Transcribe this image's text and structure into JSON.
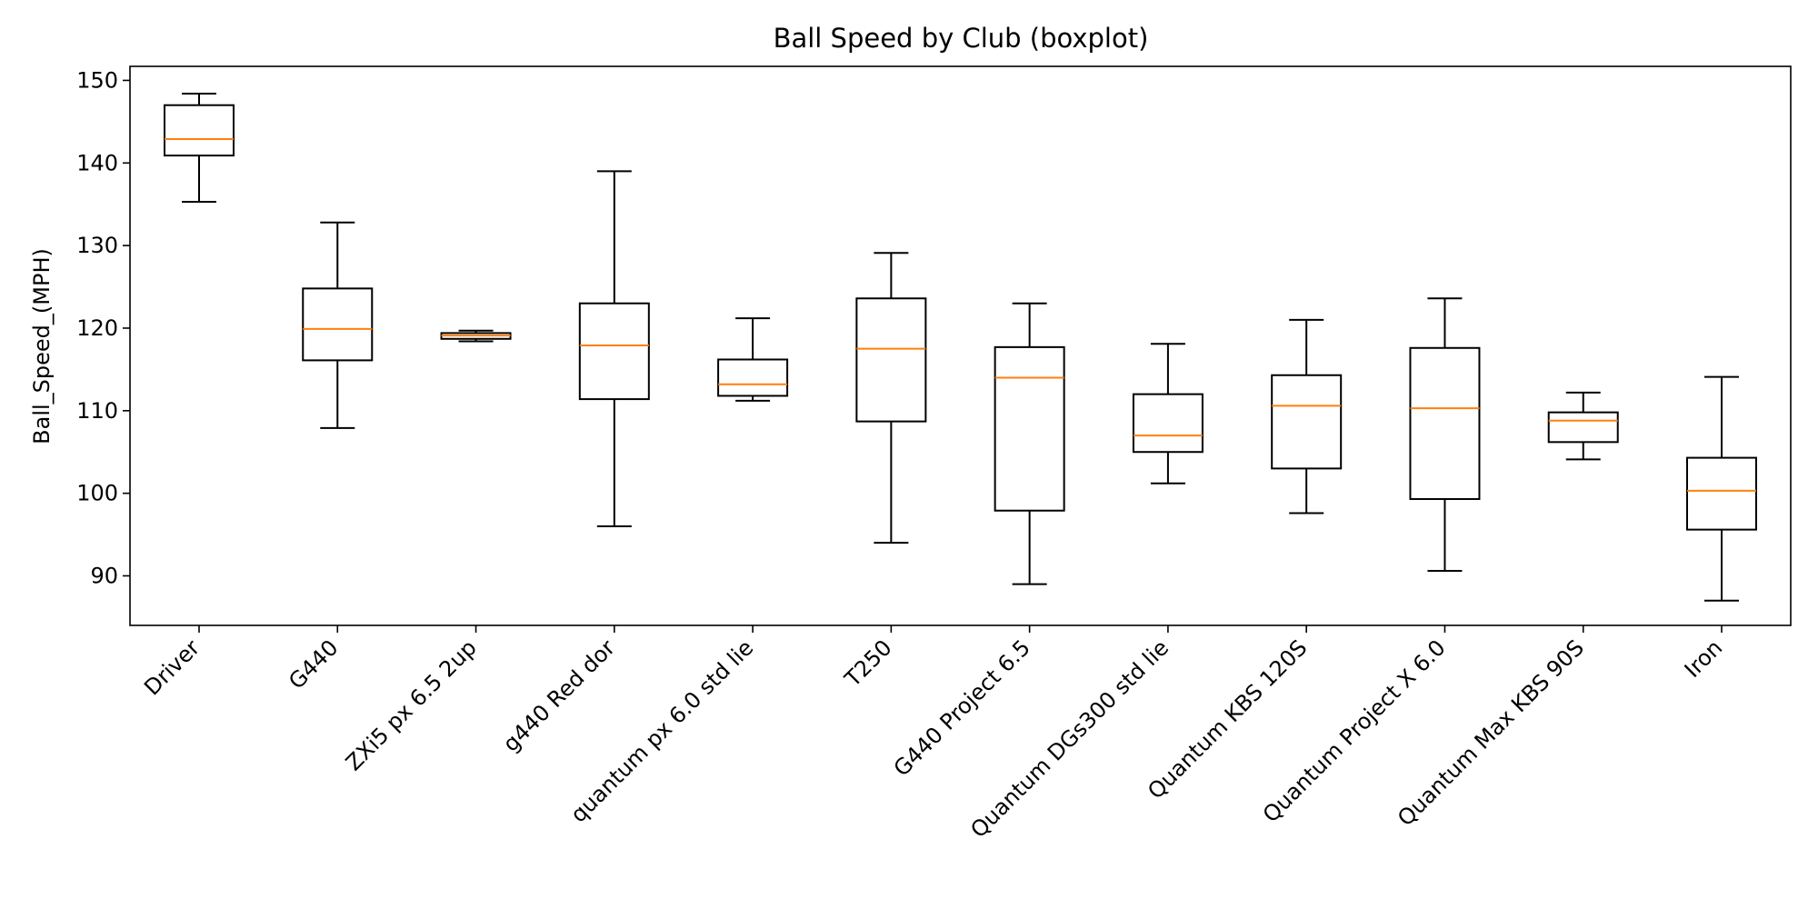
{
  "chart_data": {
    "type": "boxplot",
    "title": "Ball Speed by Club (boxplot)",
    "xlabel": "",
    "ylabel": "Ball_Speed_(MPH)",
    "ylim": [
      84,
      151.7
    ],
    "yticks": [
      90,
      100,
      110,
      120,
      130,
      140,
      150
    ],
    "grid": false,
    "legend": "none",
    "colors": {
      "box": "#000000",
      "median": "#ff7f0e",
      "background": "#ffffff"
    },
    "categories": [
      "Driver",
      "G440",
      "ZXi5 px 6.5 2up",
      "g440 Red dor",
      "quantum px 6.0 std lie",
      "T250",
      "G440 Project 6.5",
      "Quantum DGs300 std lie",
      "Quantum KBS 120S",
      "Quantum Project X 6.0",
      "Quantum Max KBS 90S",
      "Iron"
    ],
    "boxes": [
      {
        "whisker_low": 135.3,
        "q1": 140.9,
        "median": 142.9,
        "q3": 147.0,
        "whisker_high": 148.4
      },
      {
        "whisker_low": 107.9,
        "q1": 116.1,
        "median": 119.9,
        "q3": 124.8,
        "whisker_high": 132.8
      },
      {
        "whisker_low": 118.4,
        "q1": 118.7,
        "median": 119.1,
        "q3": 119.4,
        "whisker_high": 119.7
      },
      {
        "whisker_low": 96.0,
        "q1": 111.4,
        "median": 117.9,
        "q3": 123.0,
        "whisker_high": 139.0
      },
      {
        "whisker_low": 111.2,
        "q1": 111.8,
        "median": 113.2,
        "q3": 116.2,
        "whisker_high": 121.2
      },
      {
        "whisker_low": 94.0,
        "q1": 108.7,
        "median": 117.5,
        "q3": 123.6,
        "whisker_high": 129.1
      },
      {
        "whisker_low": 89.0,
        "q1": 97.9,
        "median": 114.0,
        "q3": 117.7,
        "whisker_high": 123.0
      },
      {
        "whisker_low": 101.2,
        "q1": 105.0,
        "median": 107.0,
        "q3": 112.0,
        "whisker_high": 118.1
      },
      {
        "whisker_low": 97.6,
        "q1": 103.0,
        "median": 110.6,
        "q3": 114.3,
        "whisker_high": 121.0
      },
      {
        "whisker_low": 90.6,
        "q1": 99.3,
        "median": 110.3,
        "q3": 117.6,
        "whisker_high": 123.6
      },
      {
        "whisker_low": 104.1,
        "q1": 106.2,
        "median": 108.8,
        "q3": 109.8,
        "whisker_high": 112.2
      },
      {
        "whisker_low": 87.0,
        "q1": 95.6,
        "median": 100.3,
        "q3": 104.3,
        "whisker_high": 114.1
      }
    ]
  }
}
